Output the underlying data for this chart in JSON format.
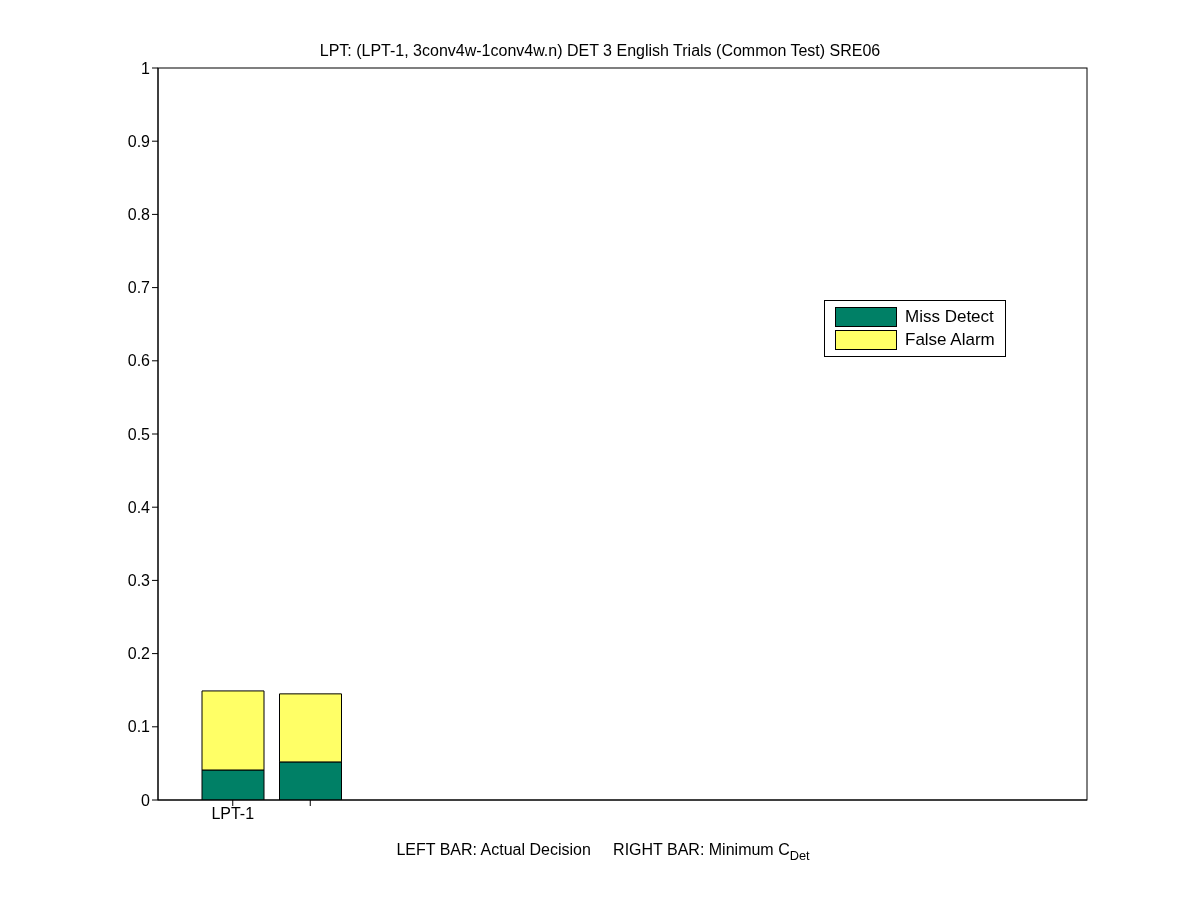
{
  "chart_data": {
    "type": "bar",
    "stacked": true,
    "title": "LPT: (LPT-1, 3conv4w-1conv4w.n) DET 3 English Trials (Common Test) SRE06",
    "xlabel": "LEFT BAR: Actual Decision     RIGHT BAR: Minimum C$_{Det}$",
    "categories": [
      "LPT-1",
      null
    ],
    "series": [
      {
        "name": "Miss Detect",
        "color": "#008066",
        "values": [
          0.041,
          0.052
        ]
      },
      {
        "name": "False Alarm",
        "color": "#ffff66",
        "values": [
          0.108,
          0.093
        ]
      }
    ],
    "ylim": [
      0,
      1
    ],
    "yticks": [
      0,
      0.1,
      0.2,
      0.3,
      0.4,
      0.5,
      0.6,
      0.7,
      0.8,
      0.9,
      1
    ],
    "grid": false,
    "legend": "right"
  }
}
